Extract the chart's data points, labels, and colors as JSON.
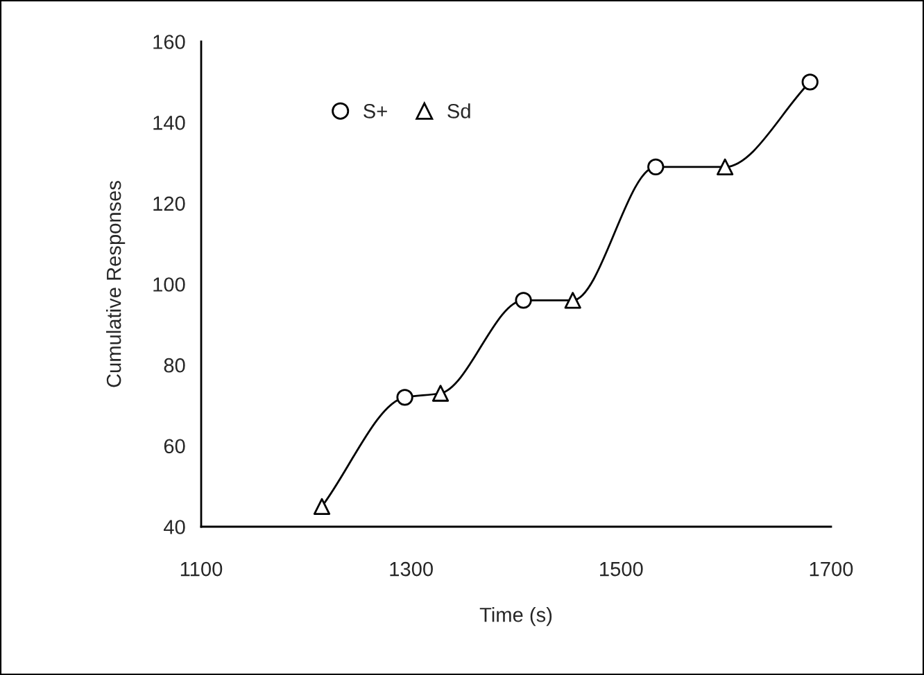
{
  "chart_data": {
    "type": "line",
    "xlabel": "Time (s)",
    "ylabel": "Cumulative Responses",
    "xlim": [
      1100,
      1700
    ],
    "xticks": [
      1100,
      1300,
      1500,
      1700
    ],
    "ylim": [
      40,
      160
    ],
    "yticks": [
      40,
      60,
      80,
      100,
      120,
      140,
      160
    ],
    "grid": false,
    "legend": "top left",
    "series": [
      {
        "color": "#000000",
        "marker": "none",
        "line_style": "solid",
        "x": [
          1215,
          1294,
          1328,
          1407,
          1454,
          1533,
          1599,
          1680
        ],
        "values": [
          45,
          72,
          73,
          96,
          96,
          129,
          129,
          150
        ]
      },
      {
        "type": "scatter",
        "name": "S+",
        "color": "#000000",
        "marker": "circle",
        "x": [
          1294,
          1407,
          1533,
          1680
        ],
        "values": [
          72,
          96,
          129,
          150
        ]
      },
      {
        "type": "scatter",
        "name": "Sd",
        "color": "#000000",
        "marker": "triangle",
        "x": [
          1215,
          1328,
          1454,
          1599
        ],
        "values": [
          45,
          73,
          96,
          129
        ]
      }
    ]
  }
}
